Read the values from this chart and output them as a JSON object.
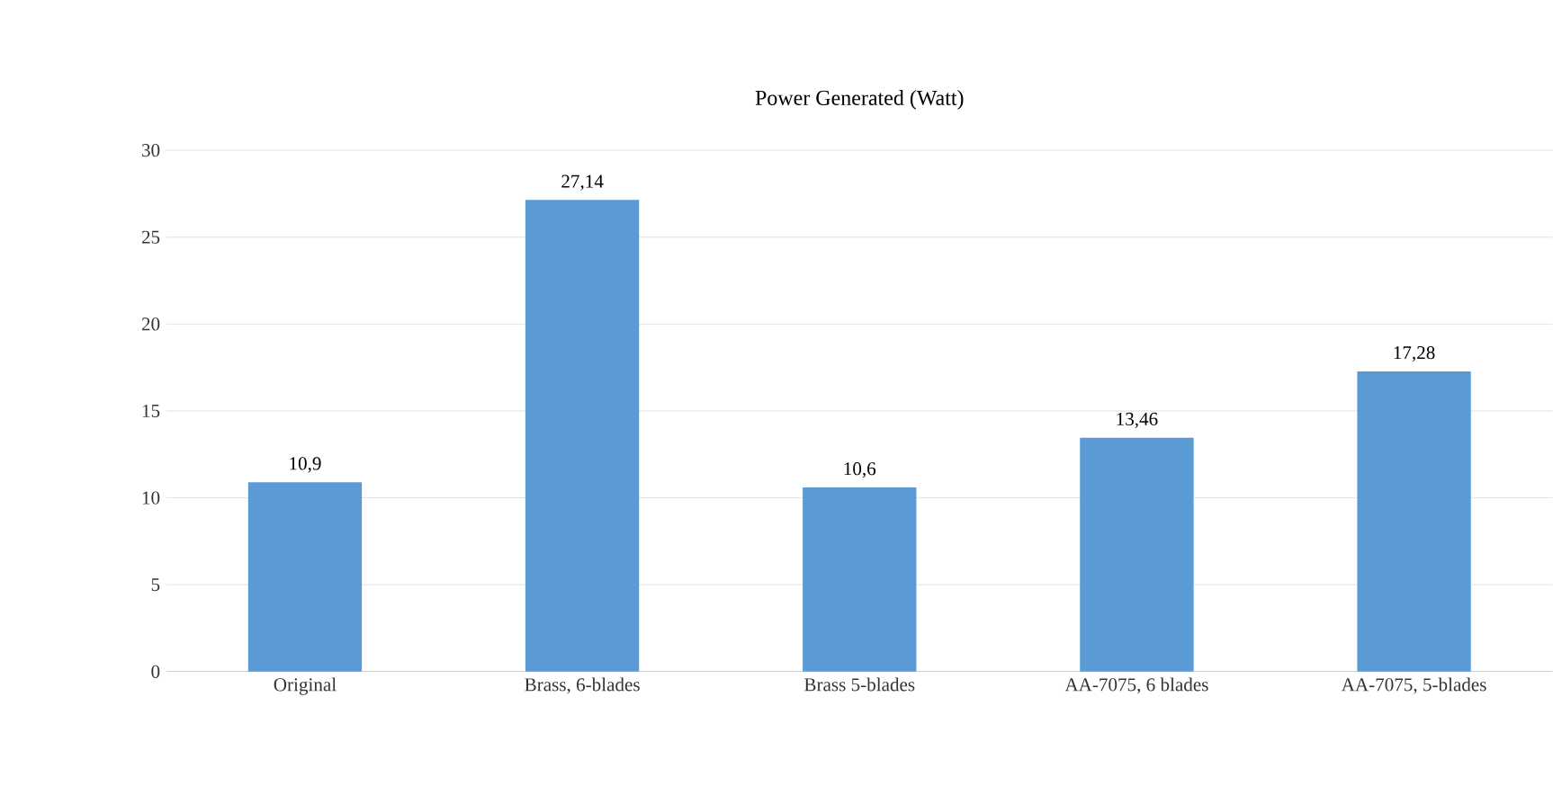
{
  "chart_data": {
    "type": "bar",
    "title": "Power Generated (Watt)",
    "categories": [
      "Original",
      "Brass, 6-blades",
      "Brass 5-blades",
      "AA-7075, 6 blades",
      "AA-7075, 5-blades"
    ],
    "values": [
      10.9,
      27.14,
      10.6,
      13.46,
      17.28
    ],
    "value_labels": [
      "10,9",
      "27,14",
      "10,6",
      "13,46",
      "17,28"
    ],
    "color": "#5b9bd5",
    "ylim": [
      0,
      30
    ],
    "yticks": [
      0,
      5,
      10,
      15,
      20,
      25,
      30
    ],
    "grid": "y"
  }
}
